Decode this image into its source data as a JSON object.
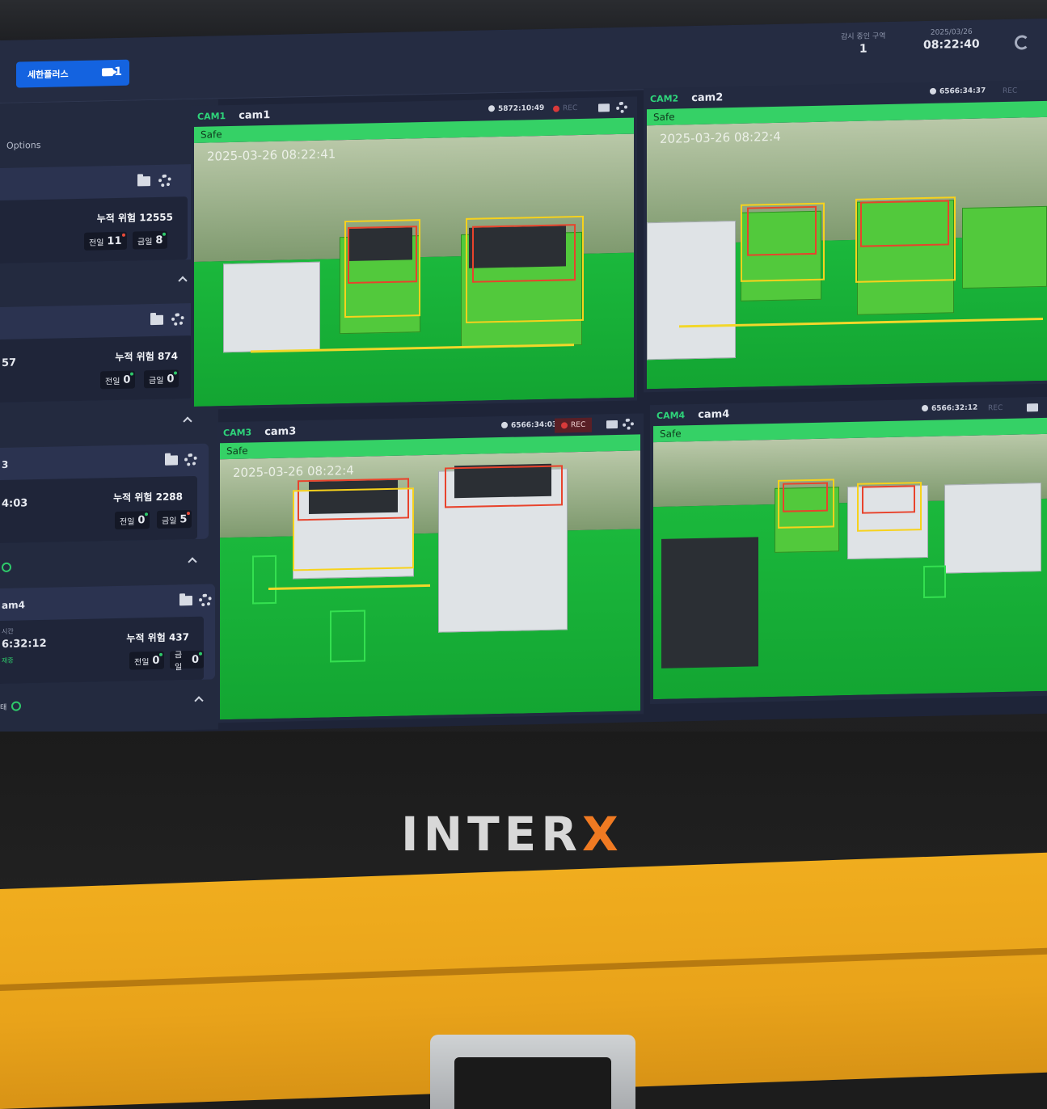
{
  "topbar": {
    "company_label": "세한플러스",
    "camera_count": "1",
    "monitoring_zone_label": "감시 중인 구역",
    "monitoring_zone_value": "1",
    "date": "2025/03/26",
    "time": "08:22:40"
  },
  "sidebar": {
    "options_label": "Options",
    "zones": [
      {
        "title": "",
        "time_label": "",
        "time_value": "",
        "cumulative": "누적 위험 12555",
        "front_label": "전일",
        "front_value": "11",
        "today_label": "금일",
        "today_value": "8",
        "footer": ""
      },
      {
        "title": "",
        "time_label": "",
        "time_value": "57",
        "cumulative": "누적 위험 874",
        "front_label": "전일",
        "front_value": "0",
        "today_label": "금일",
        "today_value": "0",
        "footer": ""
      },
      {
        "title": "3",
        "time_label": "",
        "time_value": "4:03",
        "cumulative": "누적 위험 2288",
        "front_label": "전일",
        "front_value": "0",
        "today_label": "금일",
        "today_value": "5",
        "footer": ""
      },
      {
        "title": "am4",
        "time_label": "시간",
        "time_value": "6:32:12",
        "status": "재중",
        "cumulative": "누적 위험 437",
        "front_label": "전일",
        "front_value": "0",
        "today_label": "금일",
        "today_value": "0",
        "footer": "태"
      }
    ]
  },
  "cameras": [
    {
      "id": "CAM1",
      "name": "cam1",
      "uptime": "5872:10:49",
      "rec": "REC",
      "rec_active": false,
      "status": "Safe",
      "stamp": "2025-03-26 08:22:41"
    },
    {
      "id": "CAM2",
      "name": "cam2",
      "uptime": "6566:34:37",
      "rec": "REC",
      "rec_active": false,
      "status": "Safe",
      "stamp": "2025-03-26 08:22:4"
    },
    {
      "id": "CAM3",
      "name": "cam3",
      "uptime": "6566:34:03",
      "rec": "REC",
      "rec_active": true,
      "status": "Safe",
      "stamp": "2025-03-26 08:22:4"
    },
    {
      "id": "CAM4",
      "name": "cam4",
      "uptime": "6566:32:12",
      "rec": "REC",
      "rec_active": false,
      "status": "Safe",
      "stamp": ""
    }
  ],
  "brand": {
    "left": "INTER",
    "accent": "X"
  },
  "colors": {
    "safe": "#35d166",
    "accent": "#1463e0",
    "brand_x": "#f07a22",
    "cabinet": "#f0ad1e"
  }
}
